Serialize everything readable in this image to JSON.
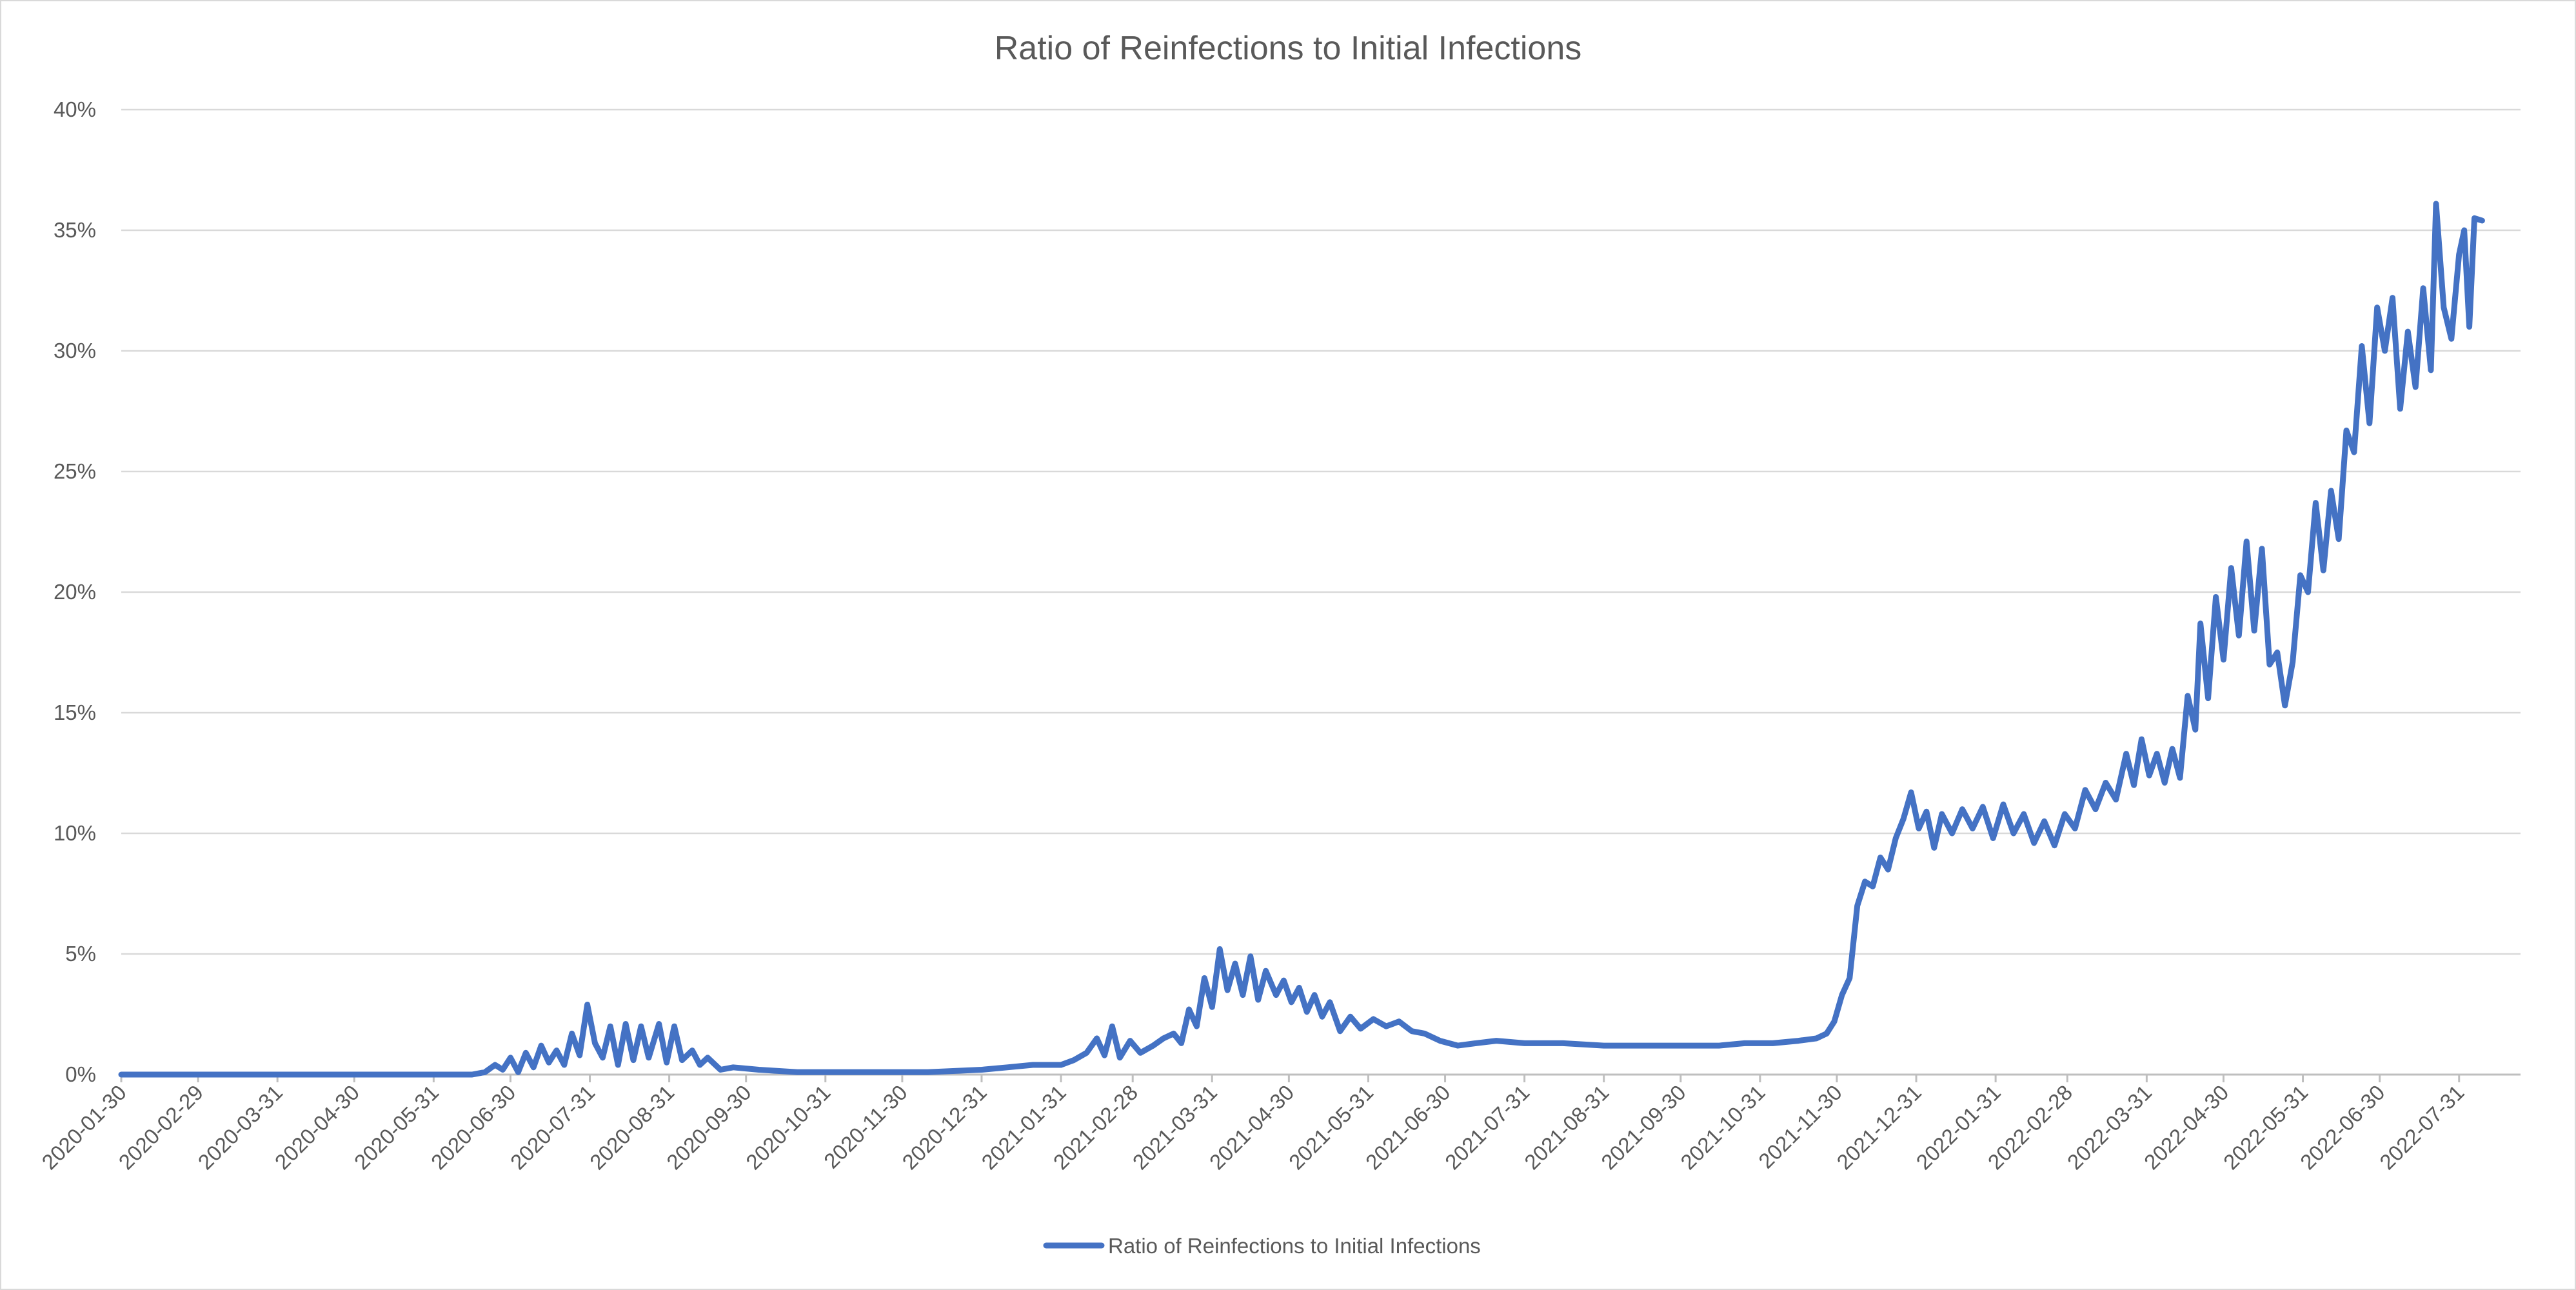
{
  "chart_data": {
    "type": "line",
    "title": "Ratio of Reinfections to Initial Infections",
    "xlabel": "",
    "ylabel": "",
    "x_type": "date",
    "x_range": [
      "2020-01-30",
      "2022-08-24"
    ],
    "ylim": [
      0,
      0.4
    ],
    "y_ticks": [
      {
        "value": 0,
        "label": "0%"
      },
      {
        "value": 0.05,
        "label": "5%"
      },
      {
        "value": 0.1,
        "label": "10%"
      },
      {
        "value": 0.15,
        "label": "15%"
      },
      {
        "value": 0.2,
        "label": "20%"
      },
      {
        "value": 0.25,
        "label": "25%"
      },
      {
        "value": 0.3,
        "label": "30%"
      },
      {
        "value": 0.35,
        "label": "35%"
      },
      {
        "value": 0.4,
        "label": "40%"
      }
    ],
    "x_ticks": [
      "2020-01-30",
      "2020-02-29",
      "2020-03-31",
      "2020-04-30",
      "2020-05-31",
      "2020-06-30",
      "2020-07-31",
      "2020-08-31",
      "2020-09-30",
      "2020-10-31",
      "2020-11-30",
      "2020-12-31",
      "2021-01-31",
      "2021-02-28",
      "2021-03-31",
      "2021-04-30",
      "2021-05-31",
      "2021-06-30",
      "2021-07-31",
      "2021-08-31",
      "2021-09-30",
      "2021-10-31",
      "2021-11-30",
      "2021-12-31",
      "2022-01-31",
      "2022-02-28",
      "2022-03-31",
      "2022-04-30",
      "2022-05-31",
      "2022-06-30",
      "2022-07-31"
    ],
    "grid": true,
    "legend_position": "bottom",
    "series": [
      {
        "name": "Ratio of Reinfections to Initial Infections",
        "color": "#4472c4",
        "points": [
          [
            "2020-01-30",
            0.0
          ],
          [
            "2020-06-15",
            0.0
          ],
          [
            "2020-06-20",
            0.001
          ],
          [
            "2020-06-24",
            0.004
          ],
          [
            "2020-06-27",
            0.002
          ],
          [
            "2020-06-30",
            0.007
          ],
          [
            "2020-07-03",
            0.001
          ],
          [
            "2020-07-06",
            0.009
          ],
          [
            "2020-07-09",
            0.003
          ],
          [
            "2020-07-12",
            0.012
          ],
          [
            "2020-07-15",
            0.005
          ],
          [
            "2020-07-18",
            0.01
          ],
          [
            "2020-07-21",
            0.004
          ],
          [
            "2020-07-24",
            0.017
          ],
          [
            "2020-07-27",
            0.008
          ],
          [
            "2020-07-30",
            0.029
          ],
          [
            "2020-08-02",
            0.013
          ],
          [
            "2020-08-05",
            0.007
          ],
          [
            "2020-08-08",
            0.02
          ],
          [
            "2020-08-11",
            0.004
          ],
          [
            "2020-08-14",
            0.021
          ],
          [
            "2020-08-17",
            0.006
          ],
          [
            "2020-08-20",
            0.02
          ],
          [
            "2020-08-23",
            0.007
          ],
          [
            "2020-08-27",
            0.021
          ],
          [
            "2020-08-30",
            0.005
          ],
          [
            "2020-09-02",
            0.02
          ],
          [
            "2020-09-05",
            0.006
          ],
          [
            "2020-09-09",
            0.01
          ],
          [
            "2020-09-12",
            0.004
          ],
          [
            "2020-09-15",
            0.007
          ],
          [
            "2020-09-20",
            0.002
          ],
          [
            "2020-09-25",
            0.003
          ],
          [
            "2020-10-05",
            0.002
          ],
          [
            "2020-10-20",
            0.001
          ],
          [
            "2020-11-15",
            0.001
          ],
          [
            "2020-12-10",
            0.001
          ],
          [
            "2020-12-31",
            0.002
          ],
          [
            "2021-01-10",
            0.003
          ],
          [
            "2021-01-20",
            0.004
          ],
          [
            "2021-01-31",
            0.004
          ],
          [
            "2021-02-05",
            0.006
          ],
          [
            "2021-02-10",
            0.009
          ],
          [
            "2021-02-14",
            0.015
          ],
          [
            "2021-02-17",
            0.008
          ],
          [
            "2021-02-20",
            0.02
          ],
          [
            "2021-02-23",
            0.007
          ],
          [
            "2021-02-27",
            0.014
          ],
          [
            "2021-03-03",
            0.009
          ],
          [
            "2021-03-08",
            0.012
          ],
          [
            "2021-03-12",
            0.015
          ],
          [
            "2021-03-16",
            0.017
          ],
          [
            "2021-03-19",
            0.013
          ],
          [
            "2021-03-22",
            0.027
          ],
          [
            "2021-03-25",
            0.02
          ],
          [
            "2021-03-28",
            0.04
          ],
          [
            "2021-03-31",
            0.028
          ],
          [
            "2021-04-03",
            0.052
          ],
          [
            "2021-04-06",
            0.035
          ],
          [
            "2021-04-09",
            0.046
          ],
          [
            "2021-04-12",
            0.033
          ],
          [
            "2021-04-15",
            0.049
          ],
          [
            "2021-04-18",
            0.031
          ],
          [
            "2021-04-21",
            0.043
          ],
          [
            "2021-04-25",
            0.033
          ],
          [
            "2021-04-28",
            0.039
          ],
          [
            "2021-05-01",
            0.03
          ],
          [
            "2021-05-04",
            0.036
          ],
          [
            "2021-05-07",
            0.026
          ],
          [
            "2021-05-10",
            0.033
          ],
          [
            "2021-05-13",
            0.024
          ],
          [
            "2021-05-16",
            0.03
          ],
          [
            "2021-05-20",
            0.018
          ],
          [
            "2021-05-24",
            0.024
          ],
          [
            "2021-05-28",
            0.019
          ],
          [
            "2021-06-02",
            0.023
          ],
          [
            "2021-06-07",
            0.02
          ],
          [
            "2021-06-12",
            0.022
          ],
          [
            "2021-06-17",
            0.018
          ],
          [
            "2021-06-22",
            0.017
          ],
          [
            "2021-06-28",
            0.014
          ],
          [
            "2021-07-05",
            0.012
          ],
          [
            "2021-07-12",
            0.013
          ],
          [
            "2021-07-20",
            0.014
          ],
          [
            "2021-07-31",
            0.013
          ],
          [
            "2021-08-15",
            0.013
          ],
          [
            "2021-08-31",
            0.012
          ],
          [
            "2021-09-15",
            0.012
          ],
          [
            "2021-09-30",
            0.012
          ],
          [
            "2021-10-15",
            0.012
          ],
          [
            "2021-10-25",
            0.013
          ],
          [
            "2021-11-05",
            0.013
          ],
          [
            "2021-11-15",
            0.014
          ],
          [
            "2021-11-22",
            0.015
          ],
          [
            "2021-11-26",
            0.017
          ],
          [
            "2021-11-29",
            0.022
          ],
          [
            "2021-12-02",
            0.033
          ],
          [
            "2021-12-05",
            0.04
          ],
          [
            "2021-12-08",
            0.07
          ],
          [
            "2021-12-11",
            0.08
          ],
          [
            "2021-12-14",
            0.078
          ],
          [
            "2021-12-17",
            0.09
          ],
          [
            "2021-12-20",
            0.085
          ],
          [
            "2021-12-23",
            0.098
          ],
          [
            "2021-12-26",
            0.106
          ],
          [
            "2021-12-29",
            0.117
          ],
          [
            "2022-01-01",
            0.102
          ],
          [
            "2022-01-04",
            0.109
          ],
          [
            "2022-01-07",
            0.094
          ],
          [
            "2022-01-10",
            0.108
          ],
          [
            "2022-01-14",
            0.1
          ],
          [
            "2022-01-18",
            0.11
          ],
          [
            "2022-01-22",
            0.102
          ],
          [
            "2022-01-26",
            0.111
          ],
          [
            "2022-01-30",
            0.098
          ],
          [
            "2022-02-03",
            0.112
          ],
          [
            "2022-02-07",
            0.1
          ],
          [
            "2022-02-11",
            0.108
          ],
          [
            "2022-02-15",
            0.096
          ],
          [
            "2022-02-19",
            0.105
          ],
          [
            "2022-02-23",
            0.095
          ],
          [
            "2022-02-27",
            0.108
          ],
          [
            "2022-03-03",
            0.102
          ],
          [
            "2022-03-07",
            0.118
          ],
          [
            "2022-03-11",
            0.11
          ],
          [
            "2022-03-15",
            0.121
          ],
          [
            "2022-03-19",
            0.114
          ],
          [
            "2022-03-23",
            0.133
          ],
          [
            "2022-03-26",
            0.12
          ],
          [
            "2022-03-29",
            0.139
          ],
          [
            "2022-04-01",
            0.124
          ],
          [
            "2022-04-04",
            0.133
          ],
          [
            "2022-04-07",
            0.121
          ],
          [
            "2022-04-10",
            0.135
          ],
          [
            "2022-04-13",
            0.123
          ],
          [
            "2022-04-16",
            0.157
          ],
          [
            "2022-04-19",
            0.143
          ],
          [
            "2022-04-21",
            0.187
          ],
          [
            "2022-04-24",
            0.156
          ],
          [
            "2022-04-27",
            0.198
          ],
          [
            "2022-04-30",
            0.172
          ],
          [
            "2022-05-03",
            0.21
          ],
          [
            "2022-05-06",
            0.182
          ],
          [
            "2022-05-09",
            0.221
          ],
          [
            "2022-05-12",
            0.184
          ],
          [
            "2022-05-15",
            0.218
          ],
          [
            "2022-05-18",
            0.17
          ],
          [
            "2022-05-21",
            0.175
          ],
          [
            "2022-05-24",
            0.153
          ],
          [
            "2022-05-27",
            0.171
          ],
          [
            "2022-05-30",
            0.207
          ],
          [
            "2022-06-02",
            0.2
          ],
          [
            "2022-06-05",
            0.237
          ],
          [
            "2022-06-08",
            0.209
          ],
          [
            "2022-06-11",
            0.242
          ],
          [
            "2022-06-14",
            0.222
          ],
          [
            "2022-06-17",
            0.267
          ],
          [
            "2022-06-20",
            0.258
          ],
          [
            "2022-06-23",
            0.302
          ],
          [
            "2022-06-26",
            0.27
          ],
          [
            "2022-06-29",
            0.318
          ],
          [
            "2022-07-02",
            0.3
          ],
          [
            "2022-07-05",
            0.322
          ],
          [
            "2022-07-08",
            0.276
          ],
          [
            "2022-07-11",
            0.308
          ],
          [
            "2022-07-14",
            0.285
          ],
          [
            "2022-07-17",
            0.326
          ],
          [
            "2022-07-20",
            0.292
          ],
          [
            "2022-07-22",
            0.361
          ],
          [
            "2022-07-25",
            0.318
          ],
          [
            "2022-07-28",
            0.305
          ],
          [
            "2022-07-31",
            0.34
          ],
          [
            "2022-08-02",
            0.35
          ],
          [
            "2022-08-04",
            0.31
          ],
          [
            "2022-08-06",
            0.355
          ],
          [
            "2022-08-09",
            0.354
          ]
        ]
      }
    ]
  }
}
